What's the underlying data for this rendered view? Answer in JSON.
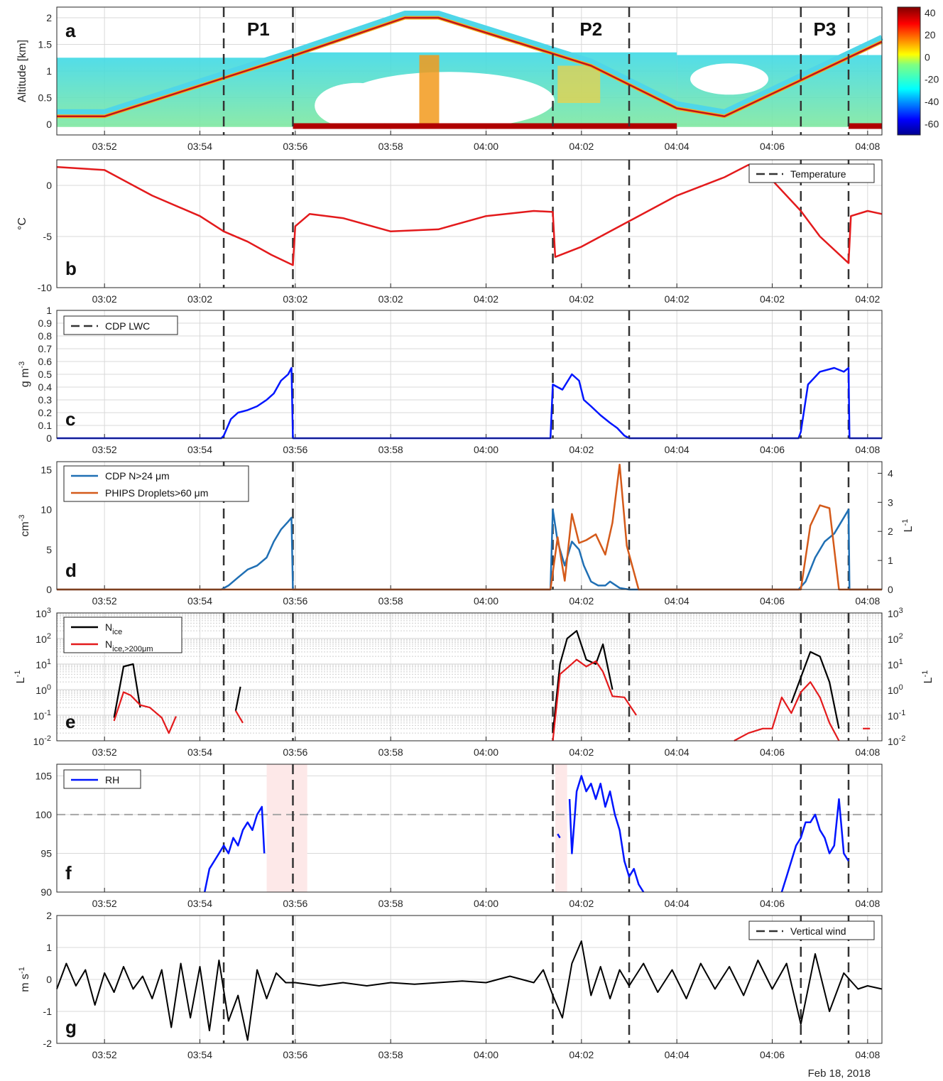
{
  "figure_date": "Feb 18, 2018",
  "colors": {
    "red": "#e31a1c",
    "blue": "#0015ff",
    "cdp_blue": "#1f6fb4",
    "phips_orange": "#d45a1a",
    "black": "#000000",
    "grid": "#d9d9d9",
    "shade": "#fde8e8"
  },
  "periods": [
    {
      "label": "P1",
      "start": 3.5,
      "end": 4.95
    },
    {
      "label": "P2",
      "start": 10.4,
      "end": 12.0
    },
    {
      "label": "P3",
      "start": 15.6,
      "end": 16.6
    }
  ],
  "chart_data": [
    {
      "panel": "a",
      "type": "heatmap",
      "ylabel": "Altitude [km]",
      "ylim": [
        -0.2,
        2.2
      ],
      "yticks": [
        "0",
        "0.5",
        "1",
        "1.5",
        "2"
      ],
      "xticks": [
        "03:52",
        "03:54",
        "03:56",
        "03:58",
        "04:00",
        "04:02",
        "04:04",
        "04:06",
        "04:08"
      ],
      "colorbar": {
        "min": -70,
        "max": 45,
        "ticks": [
          "40",
          "20",
          "0",
          "-20",
          "-40",
          "-60"
        ]
      },
      "flight_altitude": {
        "x": [
          0,
          1,
          5,
          7.3,
          8,
          11.2,
          13.0,
          14.0,
          17.3
        ],
        "y": [
          0.15,
          0.15,
          1.3,
          2.0,
          2.0,
          1.1,
          0.3,
          0.15,
          1.55
        ]
      }
    },
    {
      "panel": "b",
      "type": "line",
      "ylabel": "°C",
      "ylim": [
        -10,
        2.5
      ],
      "yticks": [
        "0",
        "-5",
        "-10"
      ],
      "xticks": [
        "03:02",
        "03:02",
        "03:02",
        "03:02",
        "04:02",
        "04:02",
        "04:02",
        "04:02",
        "04:02"
      ],
      "legend": [
        "Temperature"
      ],
      "series": [
        {
          "name": "Temperature",
          "color": "#e31a1c",
          "x": [
            0,
            1,
            2,
            3,
            3.5,
            4,
            4.5,
            4.95,
            5.0,
            5.3,
            6,
            7,
            8,
            9,
            10,
            10.4,
            10.45,
            11,
            12,
            13,
            14,
            14.5,
            15,
            15.6,
            16,
            16.6,
            16.65,
            17,
            17.3
          ],
          "y": [
            1.8,
            1.5,
            -1.0,
            -3.0,
            -4.5,
            -5.5,
            -6.8,
            -7.8,
            -4.0,
            -2.8,
            -3.2,
            -4.5,
            -4.3,
            -3.0,
            -2.5,
            -2.6,
            -7.0,
            -6.0,
            -3.5,
            -1.0,
            0.8,
            2.0,
            0.5,
            -2.5,
            -5.0,
            -7.6,
            -3.0,
            -2.5,
            -2.8
          ]
        }
      ]
    },
    {
      "panel": "c",
      "type": "line",
      "ylabel": "g m-3",
      "ylim": [
        0,
        1
      ],
      "yticks": [
        "0",
        "0.1",
        "0.2",
        "0.3",
        "0.4",
        "0.5",
        "0.6",
        "0.7",
        "0.8",
        "0.9",
        "1"
      ],
      "xticks": [
        "03:52",
        "03:54",
        "03:56",
        "03:58",
        "04:00",
        "04:02",
        "04:04",
        "04:06",
        "04:08"
      ],
      "legend": [
        "CDP LWC"
      ],
      "series": [
        {
          "name": "CDP LWC",
          "color": "#0015ff",
          "x": [
            0,
            3.45,
            3.5,
            3.65,
            3.8,
            4.0,
            4.2,
            4.4,
            4.55,
            4.7,
            4.85,
            4.92,
            4.95,
            10.35,
            10.4,
            10.6,
            10.8,
            10.95,
            11.05,
            11.2,
            11.4,
            11.6,
            11.75,
            11.9,
            12.0,
            15.55,
            15.6,
            15.75,
            16.0,
            16.3,
            16.5,
            16.6,
            16.62,
            17.3
          ],
          "y": [
            0,
            0,
            0.02,
            0.15,
            0.2,
            0.22,
            0.25,
            0.3,
            0.35,
            0.45,
            0.5,
            0.55,
            0,
            0,
            0.42,
            0.38,
            0.5,
            0.45,
            0.3,
            0.25,
            0.18,
            0.12,
            0.08,
            0.02,
            0,
            0,
            0.05,
            0.42,
            0.52,
            0.55,
            0.52,
            0.55,
            0,
            0
          ]
        }
      ]
    },
    {
      "panel": "d",
      "type": "line",
      "ylabel": "cm-3",
      "ylabel_right": "L-1",
      "ylim": [
        0,
        16
      ],
      "ylim_right": [
        0,
        4.4
      ],
      "yticks": [
        "0",
        "5",
        "10",
        "15"
      ],
      "yticks_right": [
        "0",
        "1",
        "2",
        "3",
        "4"
      ],
      "xticks": [
        "03:52",
        "03:54",
        "03:56",
        "03:58",
        "04:00",
        "04:02",
        "04:04",
        "04:06",
        "04:08"
      ],
      "legend": [
        "CDP N>24 μm",
        "PHIPS Droplets>60 μm"
      ],
      "series": [
        {
          "name": "CDP N>24 μm",
          "color": "#1f6fb4",
          "axis": "left",
          "x": [
            0,
            3.45,
            3.6,
            3.8,
            4.0,
            4.2,
            4.4,
            4.55,
            4.7,
            4.85,
            4.92,
            4.95,
            10.35,
            10.4,
            10.5,
            10.65,
            10.8,
            10.95,
            11.05,
            11.2,
            11.35,
            11.5,
            11.6,
            11.8,
            12.0,
            15.55,
            15.7,
            15.9,
            16.1,
            16.3,
            16.5,
            16.6,
            16.62,
            17.3
          ],
          "y": [
            0,
            0,
            0.5,
            1.5,
            2.5,
            3.0,
            4.0,
            6.0,
            7.5,
            8.5,
            9.0,
            0,
            0,
            10.0,
            6.0,
            3.0,
            6.0,
            5.0,
            3.0,
            1.0,
            0.5,
            0.5,
            1.0,
            0.2,
            0,
            0,
            1.0,
            4.0,
            6.0,
            7.0,
            9.0,
            10.0,
            0,
            0
          ]
        },
        {
          "name": "PHIPS Droplets>60 μm",
          "color": "#d45a1a",
          "axis": "right",
          "x": [
            0,
            10.35,
            10.5,
            10.65,
            10.8,
            10.95,
            11.1,
            11.3,
            11.5,
            11.65,
            11.8,
            11.95,
            12.2,
            15.6,
            15.8,
            16.0,
            16.2,
            16.4,
            16.6,
            17.3
          ],
          "y": [
            0,
            0,
            1.8,
            0.3,
            2.6,
            1.6,
            1.7,
            1.9,
            1.2,
            2.3,
            4.3,
            1.5,
            0,
            0,
            2.2,
            2.9,
            2.8,
            0,
            0,
            0
          ]
        }
      ]
    },
    {
      "panel": "e",
      "type": "line",
      "yscale": "log",
      "ylabel": "L-1",
      "ylabel_right": "L-1",
      "ylim": [
        0.01,
        1000
      ],
      "yticks": [
        "10-2",
        "10-1",
        "100",
        "101",
        "102",
        "103"
      ],
      "xticks": [
        "03:52",
        "03:54",
        "03:56",
        "03:58",
        "04:00",
        "04:02",
        "04:04",
        "04:06",
        "04:08"
      ],
      "legend": [
        "Nice",
        "Nice,>200μm"
      ],
      "series": [
        {
          "name": "Nice",
          "color": "#000000",
          "segments": [
            {
              "x": [
                1.2,
                1.4,
                1.6,
                1.75
              ],
              "y": [
                0.08,
                8,
                10,
                0.2
              ]
            },
            {
              "x": [
                3.75,
                3.85
              ],
              "y": [
                0.15,
                1.3
              ]
            },
            {
              "x": [
                10.4,
                10.55,
                10.7,
                10.9,
                11.1,
                11.3,
                11.45,
                11.65
              ],
              "y": [
                0.02,
                10,
                100,
                200,
                15,
                10,
                60,
                1
              ]
            },
            {
              "x": [
                15.4,
                15.6,
                15.8,
                16.0,
                16.2,
                16.4
              ],
              "y": [
                0.3,
                3,
                30,
                20,
                2,
                0.03
              ]
            }
          ]
        },
        {
          "name": "Nice,>200μm",
          "color": "#e31a1c",
          "segments": [
            {
              "x": [
                1.2,
                1.4,
                1.55,
                1.75,
                1.95,
                2.2,
                2.35,
                2.5
              ],
              "y": [
                0.06,
                0.8,
                0.6,
                0.25,
                0.2,
                0.08,
                0.02,
                0.09
              ]
            },
            {
              "x": [
                3.75,
                3.9
              ],
              "y": [
                0.15,
                0.05
              ]
            },
            {
              "x": [
                10.4,
                10.55,
                10.7,
                10.9,
                11.1,
                11.3,
                11.45,
                11.65,
                11.9,
                12.15
              ],
              "y": [
                0.01,
                4,
                7,
                15,
                8,
                13,
                5,
                0.55,
                0.5,
                0.1
              ]
            },
            {
              "x": [
                14.2,
                14.5,
                14.8,
                15.0,
                15.2,
                15.4,
                15.6,
                15.8,
                16.0,
                16.2,
                16.4
              ],
              "y": [
                0.01,
                0.02,
                0.03,
                0.03,
                0.5,
                0.12,
                0.8,
                2,
                0.5,
                0.05,
                0.01
              ]
            },
            {
              "x": [
                16.9,
                17.05
              ],
              "y": [
                0.03,
                0.03
              ]
            }
          ]
        }
      ]
    },
    {
      "panel": "f",
      "type": "line",
      "ylabel": "",
      "ylim": [
        90,
        106.5
      ],
      "yticks": [
        "90",
        "95",
        "100",
        "105"
      ],
      "xticks": [
        "03:52",
        "03:54",
        "03:56",
        "03:58",
        "04:00",
        "04:02",
        "04:04",
        "04:06",
        "04:08"
      ],
      "legend": [
        "RH"
      ],
      "reference_line": 100,
      "shaded": [
        [
          4.4,
          5.25
        ],
        [
          10.45,
          10.7
        ]
      ],
      "series": [
        {
          "name": "RH",
          "color": "#0015ff",
          "segments": [
            {
              "x": [
                3.1,
                3.2,
                3.3,
                3.4,
                3.5,
                3.6,
                3.7,
                3.8,
                3.9,
                4.0,
                4.1,
                4.2,
                4.3,
                4.35
              ],
              "y": [
                90,
                93,
                94,
                95,
                96,
                95,
                97,
                96,
                98,
                99,
                98,
                100,
                101,
                95
              ]
            },
            {
              "x": [
                10.5,
                10.55
              ],
              "y": [
                97.5,
                97
              ]
            },
            {
              "x": [
                10.75,
                10.8,
                10.9,
                11.0,
                11.1,
                11.2,
                11.3,
                11.4,
                11.5,
                11.6,
                11.7,
                11.8,
                11.9,
                12.0,
                12.1,
                12.2,
                12.3
              ],
              "y": [
                102,
                95,
                103,
                105,
                103,
                104,
                102,
                104,
                101,
                103,
                100,
                98,
                94,
                92,
                93,
                91,
                90
              ]
            },
            {
              "x": [
                15.2,
                15.3,
                15.4,
                15.5,
                15.6,
                15.7,
                15.8,
                15.9,
                16.0,
                16.1,
                16.2,
                16.3,
                16.4,
                16.5,
                16.6
              ],
              "y": [
                90,
                92,
                94,
                96,
                97,
                99,
                99,
                100,
                98,
                97,
                95,
                96,
                102,
                95,
                94
              ]
            }
          ]
        }
      ]
    },
    {
      "panel": "g",
      "type": "line",
      "ylabel": "m s-1",
      "ylim": [
        -2,
        2
      ],
      "yticks": [
        "-2",
        "-1",
        "0",
        "1",
        "2"
      ],
      "xticks": [
        "03:52",
        "03:54",
        "03:56",
        "03:58",
        "04:00",
        "04:02",
        "04:04",
        "04:06",
        "04:08"
      ],
      "legend": [
        "Vertical wind"
      ],
      "series": [
        {
          "name": "Vertical wind",
          "color": "#000000",
          "x": [
            0,
            0.2,
            0.4,
            0.6,
            0.8,
            1.0,
            1.2,
            1.4,
            1.6,
            1.8,
            2.0,
            2.2,
            2.4,
            2.6,
            2.8,
            3.0,
            3.2,
            3.4,
            3.6,
            3.8,
            4.0,
            4.2,
            4.4,
            4.6,
            4.8,
            5.0,
            5.5,
            6.0,
            6.5,
            7.0,
            7.5,
            8.0,
            8.5,
            9.0,
            9.5,
            10.0,
            10.2,
            10.4,
            10.6,
            10.8,
            11.0,
            11.2,
            11.4,
            11.6,
            11.8,
            12.0,
            12.3,
            12.6,
            12.9,
            13.2,
            13.5,
            13.8,
            14.1,
            14.4,
            14.7,
            15.0,
            15.3,
            15.6,
            15.9,
            16.2,
            16.5,
            16.8,
            17.0,
            17.3
          ],
          "y": [
            -0.3,
            0.5,
            -0.2,
            0.3,
            -0.8,
            0.2,
            -0.4,
            0.4,
            -0.3,
            0.1,
            -0.6,
            0.3,
            -1.5,
            0.5,
            -1.2,
            0.4,
            -1.6,
            0.6,
            -1.3,
            -0.5,
            -1.9,
            0.3,
            -0.6,
            0.2,
            -0.1,
            -0.1,
            -0.2,
            -0.1,
            -0.2,
            -0.1,
            -0.15,
            -0.1,
            -0.05,
            -0.1,
            0.1,
            -0.1,
            0.3,
            -0.5,
            -1.2,
            0.5,
            1.2,
            -0.5,
            0.4,
            -0.6,
            0.3,
            -0.2,
            0.5,
            -0.4,
            0.3,
            -0.6,
            0.5,
            -0.3,
            0.4,
            -0.5,
            0.6,
            -0.3,
            0.5,
            -1.4,
            0.8,
            -1.0,
            0.2,
            -0.3,
            -0.2,
            -0.3
          ]
        }
      ]
    }
  ]
}
